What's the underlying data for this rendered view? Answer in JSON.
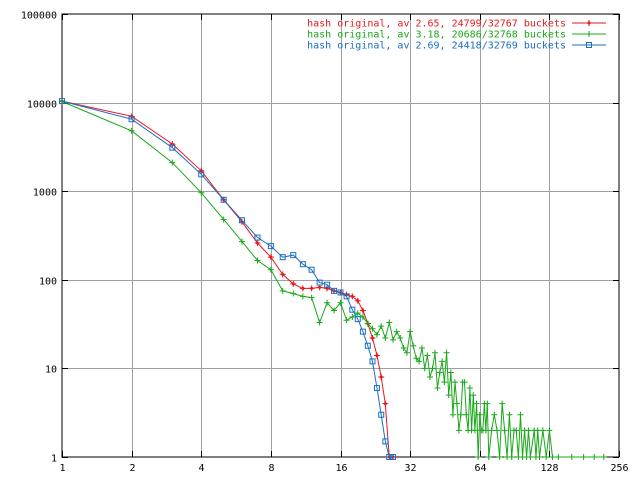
{
  "chart_data": {
    "type": "line",
    "title": "",
    "xlabel": "",
    "ylabel": "",
    "x_scale": "log2",
    "y_scale": "log10",
    "xlim": [
      1,
      256
    ],
    "ylim": [
      1,
      100000
    ],
    "grid": true,
    "legend_position": "top-right",
    "x_ticks": [
      1,
      2,
      4,
      8,
      16,
      32,
      64,
      128,
      256
    ],
    "y_ticks": [
      1,
      10,
      100,
      1000,
      10000,
      100000
    ],
    "x_tick_labels": [
      "1",
      "2",
      "4",
      "8",
      "16",
      "32",
      "64",
      "128",
      "256"
    ],
    "y_tick_labels": [
      "1",
      "10",
      "100",
      "1000",
      "10000",
      "100000"
    ],
    "series": [
      {
        "name": "hash original, av 2.65, 24799/32767 buckets",
        "color": "#e8191c",
        "marker": "plus-circle",
        "points": [
          [
            1,
            10400
          ],
          [
            2,
            7000
          ],
          [
            3,
            3400
          ],
          [
            4,
            1700
          ],
          [
            5,
            800
          ],
          [
            6,
            450
          ],
          [
            7,
            260
          ],
          [
            8,
            180
          ],
          [
            9,
            115
          ],
          [
            10,
            90
          ],
          [
            11,
            80
          ],
          [
            12,
            80
          ],
          [
            13,
            82
          ],
          [
            14,
            80
          ],
          [
            15,
            75
          ],
          [
            16,
            72
          ],
          [
            17,
            68
          ],
          [
            18,
            65
          ],
          [
            19,
            58
          ],
          [
            20,
            45
          ],
          [
            21,
            32
          ],
          [
            22,
            22
          ],
          [
            23,
            14
          ],
          [
            24,
            8
          ],
          [
            25,
            4
          ],
          [
            26,
            1
          ],
          [
            27,
            1
          ]
        ]
      },
      {
        "name": "hash original, av 3.18, 20686/32768 buckets",
        "color": "#18a818",
        "marker": "plus",
        "points": [
          [
            1,
            10300
          ],
          [
            2,
            4800
          ],
          [
            3,
            2100
          ],
          [
            4,
            960
          ],
          [
            5,
            480
          ],
          [
            6,
            270
          ],
          [
            7,
            165
          ],
          [
            8,
            130
          ],
          [
            9,
            75
          ],
          [
            10,
            70
          ],
          [
            11,
            65
          ],
          [
            12,
            63
          ],
          [
            13,
            33
          ],
          [
            14,
            55
          ],
          [
            15,
            45
          ],
          [
            16,
            55
          ],
          [
            17,
            35
          ],
          [
            18,
            38
          ],
          [
            19,
            42
          ],
          [
            20,
            38
          ],
          [
            21,
            32
          ],
          [
            22,
            28
          ],
          [
            23,
            24
          ],
          [
            24,
            30
          ],
          [
            25,
            22
          ],
          [
            26,
            33
          ],
          [
            27,
            21
          ],
          [
            28,
            26
          ],
          [
            29,
            22
          ],
          [
            30,
            17
          ],
          [
            31,
            15
          ],
          [
            32,
            26
          ],
          [
            33,
            18
          ],
          [
            34,
            13
          ],
          [
            35,
            12
          ],
          [
            36,
            17
          ],
          [
            37,
            10
          ],
          [
            38,
            14
          ],
          [
            39,
            8
          ],
          [
            40,
            10
          ],
          [
            41,
            15
          ],
          [
            42,
            6
          ],
          [
            43,
            9
          ],
          [
            44,
            12
          ],
          [
            45,
            7
          ],
          [
            46,
            15
          ],
          [
            47,
            5
          ],
          [
            48,
            9
          ],
          [
            49,
            3
          ],
          [
            50,
            7
          ],
          [
            51,
            4
          ],
          [
            52,
            2
          ],
          [
            53,
            3
          ],
          [
            54,
            7
          ],
          [
            55,
            7
          ],
          [
            56,
            3
          ],
          [
            57,
            2
          ],
          [
            58,
            6
          ],
          [
            59,
            2
          ],
          [
            60,
            5
          ],
          [
            61,
            2
          ],
          [
            62,
            4
          ],
          [
            63,
            1
          ],
          [
            64,
            3
          ],
          [
            65,
            2
          ],
          [
            66,
            2
          ],
          [
            67,
            4
          ],
          [
            68,
            2
          ],
          [
            69,
            4
          ],
          [
            70,
            1
          ],
          [
            72,
            2
          ],
          [
            74,
            3
          ],
          [
            76,
            2
          ],
          [
            78,
            1
          ],
          [
            80,
            4
          ],
          [
            82,
            2
          ],
          [
            84,
            1
          ],
          [
            86,
            3
          ],
          [
            88,
            1
          ],
          [
            90,
            2
          ],
          [
            92,
            2
          ],
          [
            94,
            1
          ],
          [
            96,
            3
          ],
          [
            98,
            1
          ],
          [
            100,
            2
          ],
          [
            102,
            1
          ],
          [
            104,
            2
          ],
          [
            106,
            1
          ],
          [
            110,
            2
          ],
          [
            112,
            1
          ],
          [
            114,
            2
          ],
          [
            116,
            1
          ],
          [
            120,
            2
          ],
          [
            124,
            1
          ],
          [
            128,
            2
          ],
          [
            132,
            1
          ],
          [
            140,
            1
          ],
          [
            160,
            1
          ],
          [
            180,
            1
          ],
          [
            200,
            1
          ],
          [
            220,
            1
          ]
        ]
      },
      {
        "name": "hash original, av 2.69, 24418/32769 buckets",
        "color": "#1a6ec2",
        "marker": "square",
        "points": [
          [
            1,
            10400
          ],
          [
            2,
            6500
          ],
          [
            3,
            3100
          ],
          [
            4,
            1550
          ],
          [
            5,
            800
          ],
          [
            6,
            470
          ],
          [
            7,
            300
          ],
          [
            8,
            240
          ],
          [
            9,
            180
          ],
          [
            10,
            190
          ],
          [
            11,
            150
          ],
          [
            12,
            130
          ],
          [
            13,
            93
          ],
          [
            14,
            88
          ],
          [
            15,
            75
          ],
          [
            16,
            72
          ],
          [
            17,
            65
          ],
          [
            18,
            46
          ],
          [
            19,
            36
          ],
          [
            20,
            26
          ],
          [
            21,
            18
          ],
          [
            22,
            12
          ],
          [
            23,
            6
          ],
          [
            24,
            3
          ],
          [
            25,
            1.5
          ],
          [
            26,
            1
          ],
          [
            27,
            1
          ]
        ]
      }
    ]
  }
}
